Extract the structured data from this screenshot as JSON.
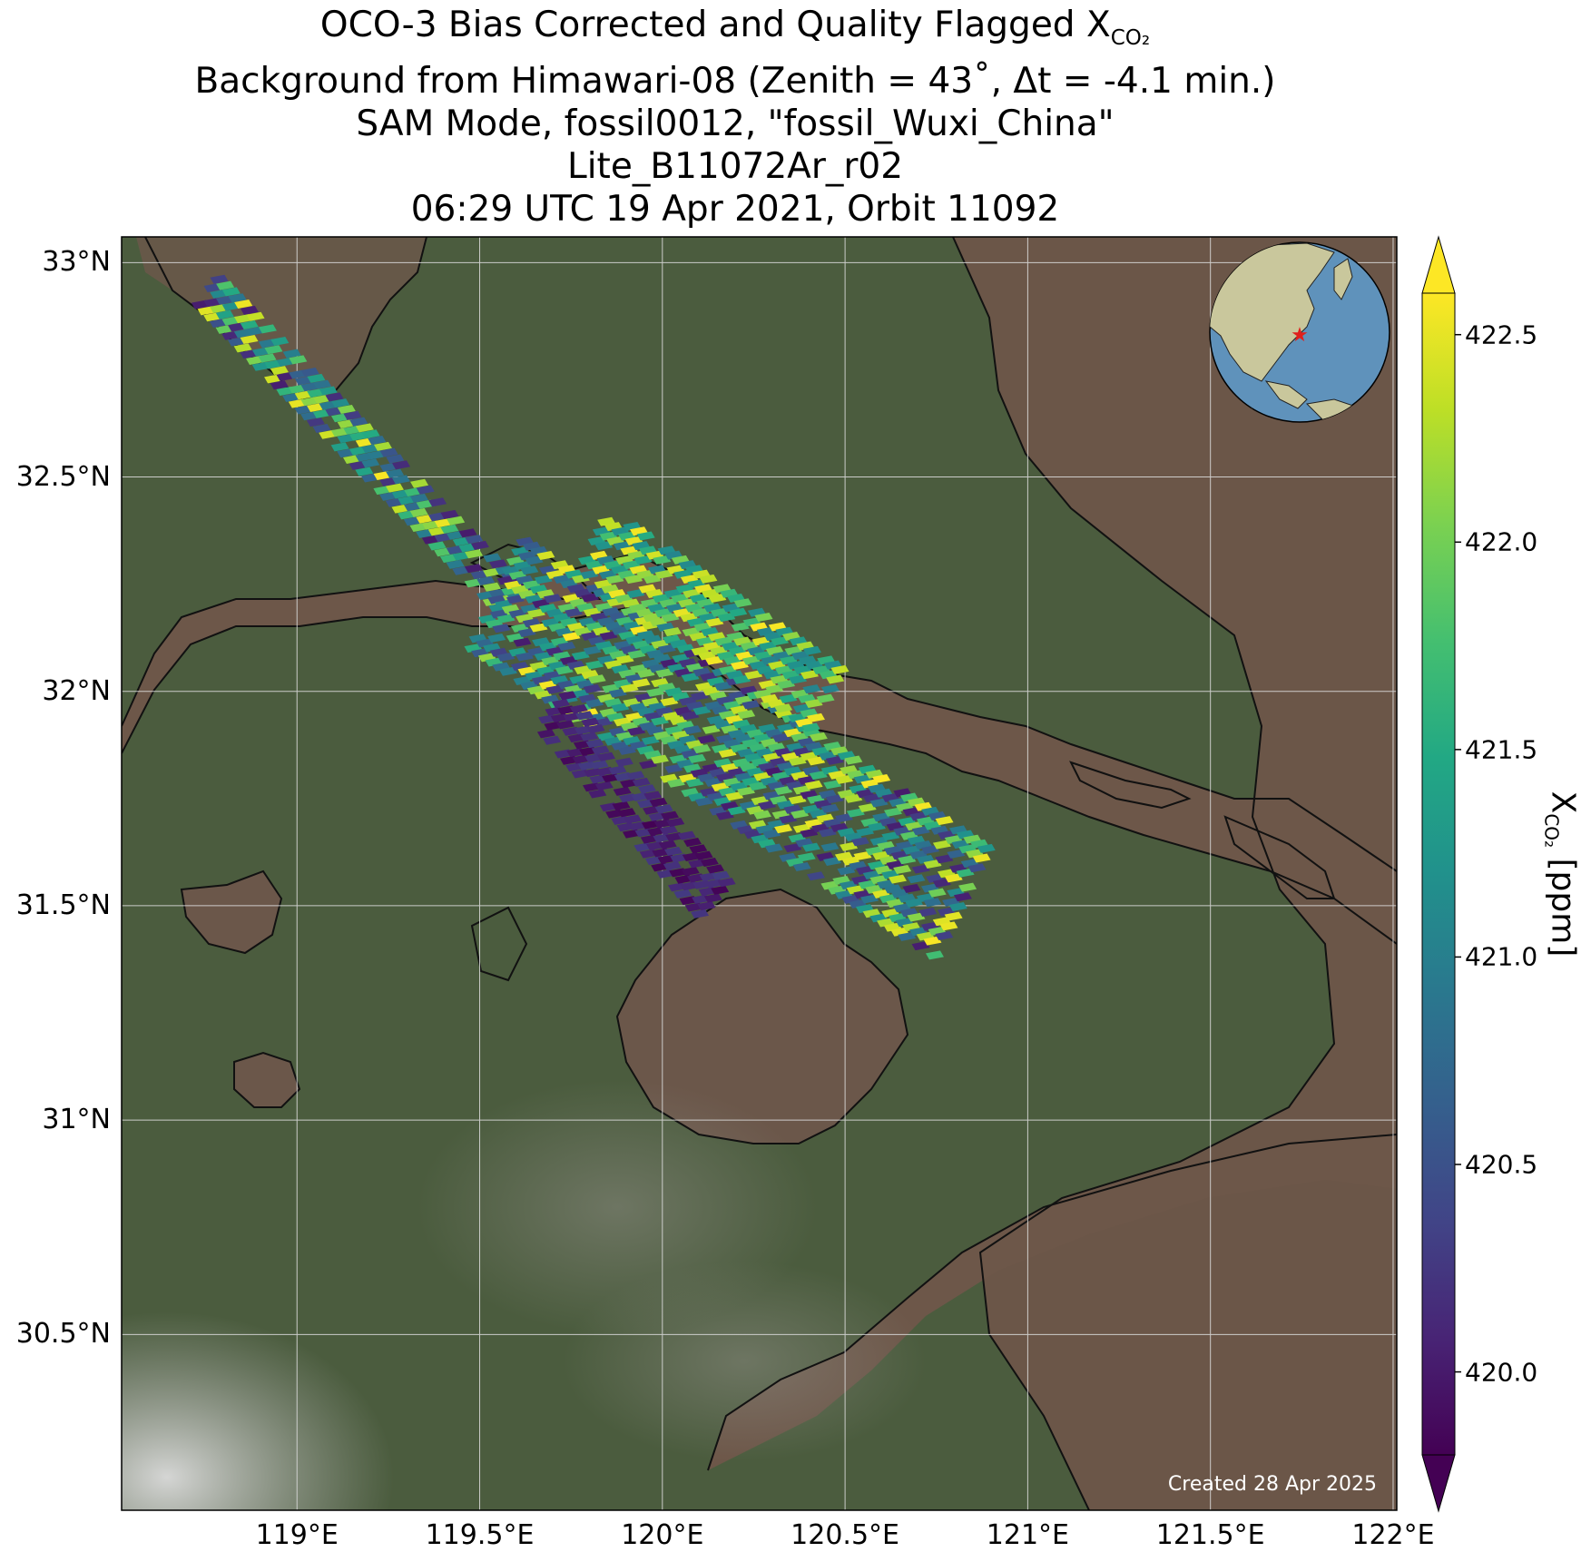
{
  "title": {
    "line1_prefix": "OCO-3 Bias Corrected and Quality Flagged X",
    "line1_sub": "CO₂",
    "line2": "Background from Himawari-08 (Zenith = 43˚, Δt = -4.1 min.)",
    "line3": "SAM Mode, fossil0012, \"fossil_Wuxi_China\"",
    "line4": "Lite_B11072Ar_r02",
    "line5": "06:29 UTC 19 Apr 2021, Orbit 11092"
  },
  "axes": {
    "lat_ticks": [
      {
        "value": 33.0,
        "label": "33°N"
      },
      {
        "value": 32.5,
        "label": "32.5°N"
      },
      {
        "value": 32.0,
        "label": "32°N"
      },
      {
        "value": 31.5,
        "label": "31.5°N"
      },
      {
        "value": 31.0,
        "label": "31°N"
      },
      {
        "value": 30.5,
        "label": "30.5°N"
      }
    ],
    "lon_ticks": [
      {
        "value": 119.0,
        "label": "119°E"
      },
      {
        "value": 119.5,
        "label": "119.5°E"
      },
      {
        "value": 120.0,
        "label": "120°E"
      },
      {
        "value": 120.5,
        "label": "120.5°E"
      },
      {
        "value": 121.0,
        "label": "121°E"
      },
      {
        "value": 121.5,
        "label": "121.5°E"
      },
      {
        "value": 122.0,
        "label": "122°E"
      }
    ],
    "lat_range": [
      30.09,
      33.06
    ],
    "lon_range": [
      118.52,
      122.01
    ],
    "grid": true
  },
  "colorbar": {
    "label_prefix": "X",
    "label_sub": "CO₂",
    "label_suffix": " [ppm]",
    "colormap": "viridis",
    "range": [
      419.8,
      422.6
    ],
    "ticks": [
      {
        "value": 420.0,
        "label": "420.0"
      },
      {
        "value": 420.5,
        "label": "420.5"
      },
      {
        "value": 421.0,
        "label": "421.0"
      },
      {
        "value": 421.5,
        "label": "421.5"
      },
      {
        "value": 422.0,
        "label": "422.0"
      },
      {
        "value": 422.5,
        "label": "422.5"
      }
    ],
    "extend": "both"
  },
  "target": {
    "name": "Wuxi",
    "lon": 120.3,
    "lat": 31.57
  },
  "created_text": "Created 28 Apr 2025",
  "colors": {
    "land": "#4d5e3f",
    "water": "#6d564a",
    "coast": "#111111",
    "grid": "#d8d8d8",
    "globe_ocean": "#5f92bb",
    "globe_land": "#c9c79c",
    "star": "#e0201c"
  },
  "chart_data": {
    "type": "scatter",
    "description_units": "lon (°E), lat (°N), XCO2 (ppm)",
    "swaths": [
      {
        "lon_start": 118.76,
        "lat_start": 32.93,
        "lon_end": 119.6,
        "lat_end": 32.2,
        "half_width_deg": 0.05,
        "value_range": [
          420.0,
          422.6
        ]
      },
      {
        "lon_start": 119.55,
        "lat_start": 32.22,
        "lon_end": 120.82,
        "lat_end": 31.5,
        "half_width_deg": 0.15,
        "value_range": [
          420.0,
          422.6
        ]
      },
      {
        "lon_start": 119.82,
        "lat_start": 32.35,
        "lon_end": 120.45,
        "lat_end": 31.98,
        "half_width_deg": 0.09,
        "value_range": [
          421.0,
          422.6
        ]
      },
      {
        "lon_start": 119.7,
        "lat_start": 31.95,
        "lon_end": 120.15,
        "lat_end": 31.5,
        "half_width_deg": 0.06,
        "value_range": [
          419.8,
          420.3
        ]
      }
    ]
  }
}
